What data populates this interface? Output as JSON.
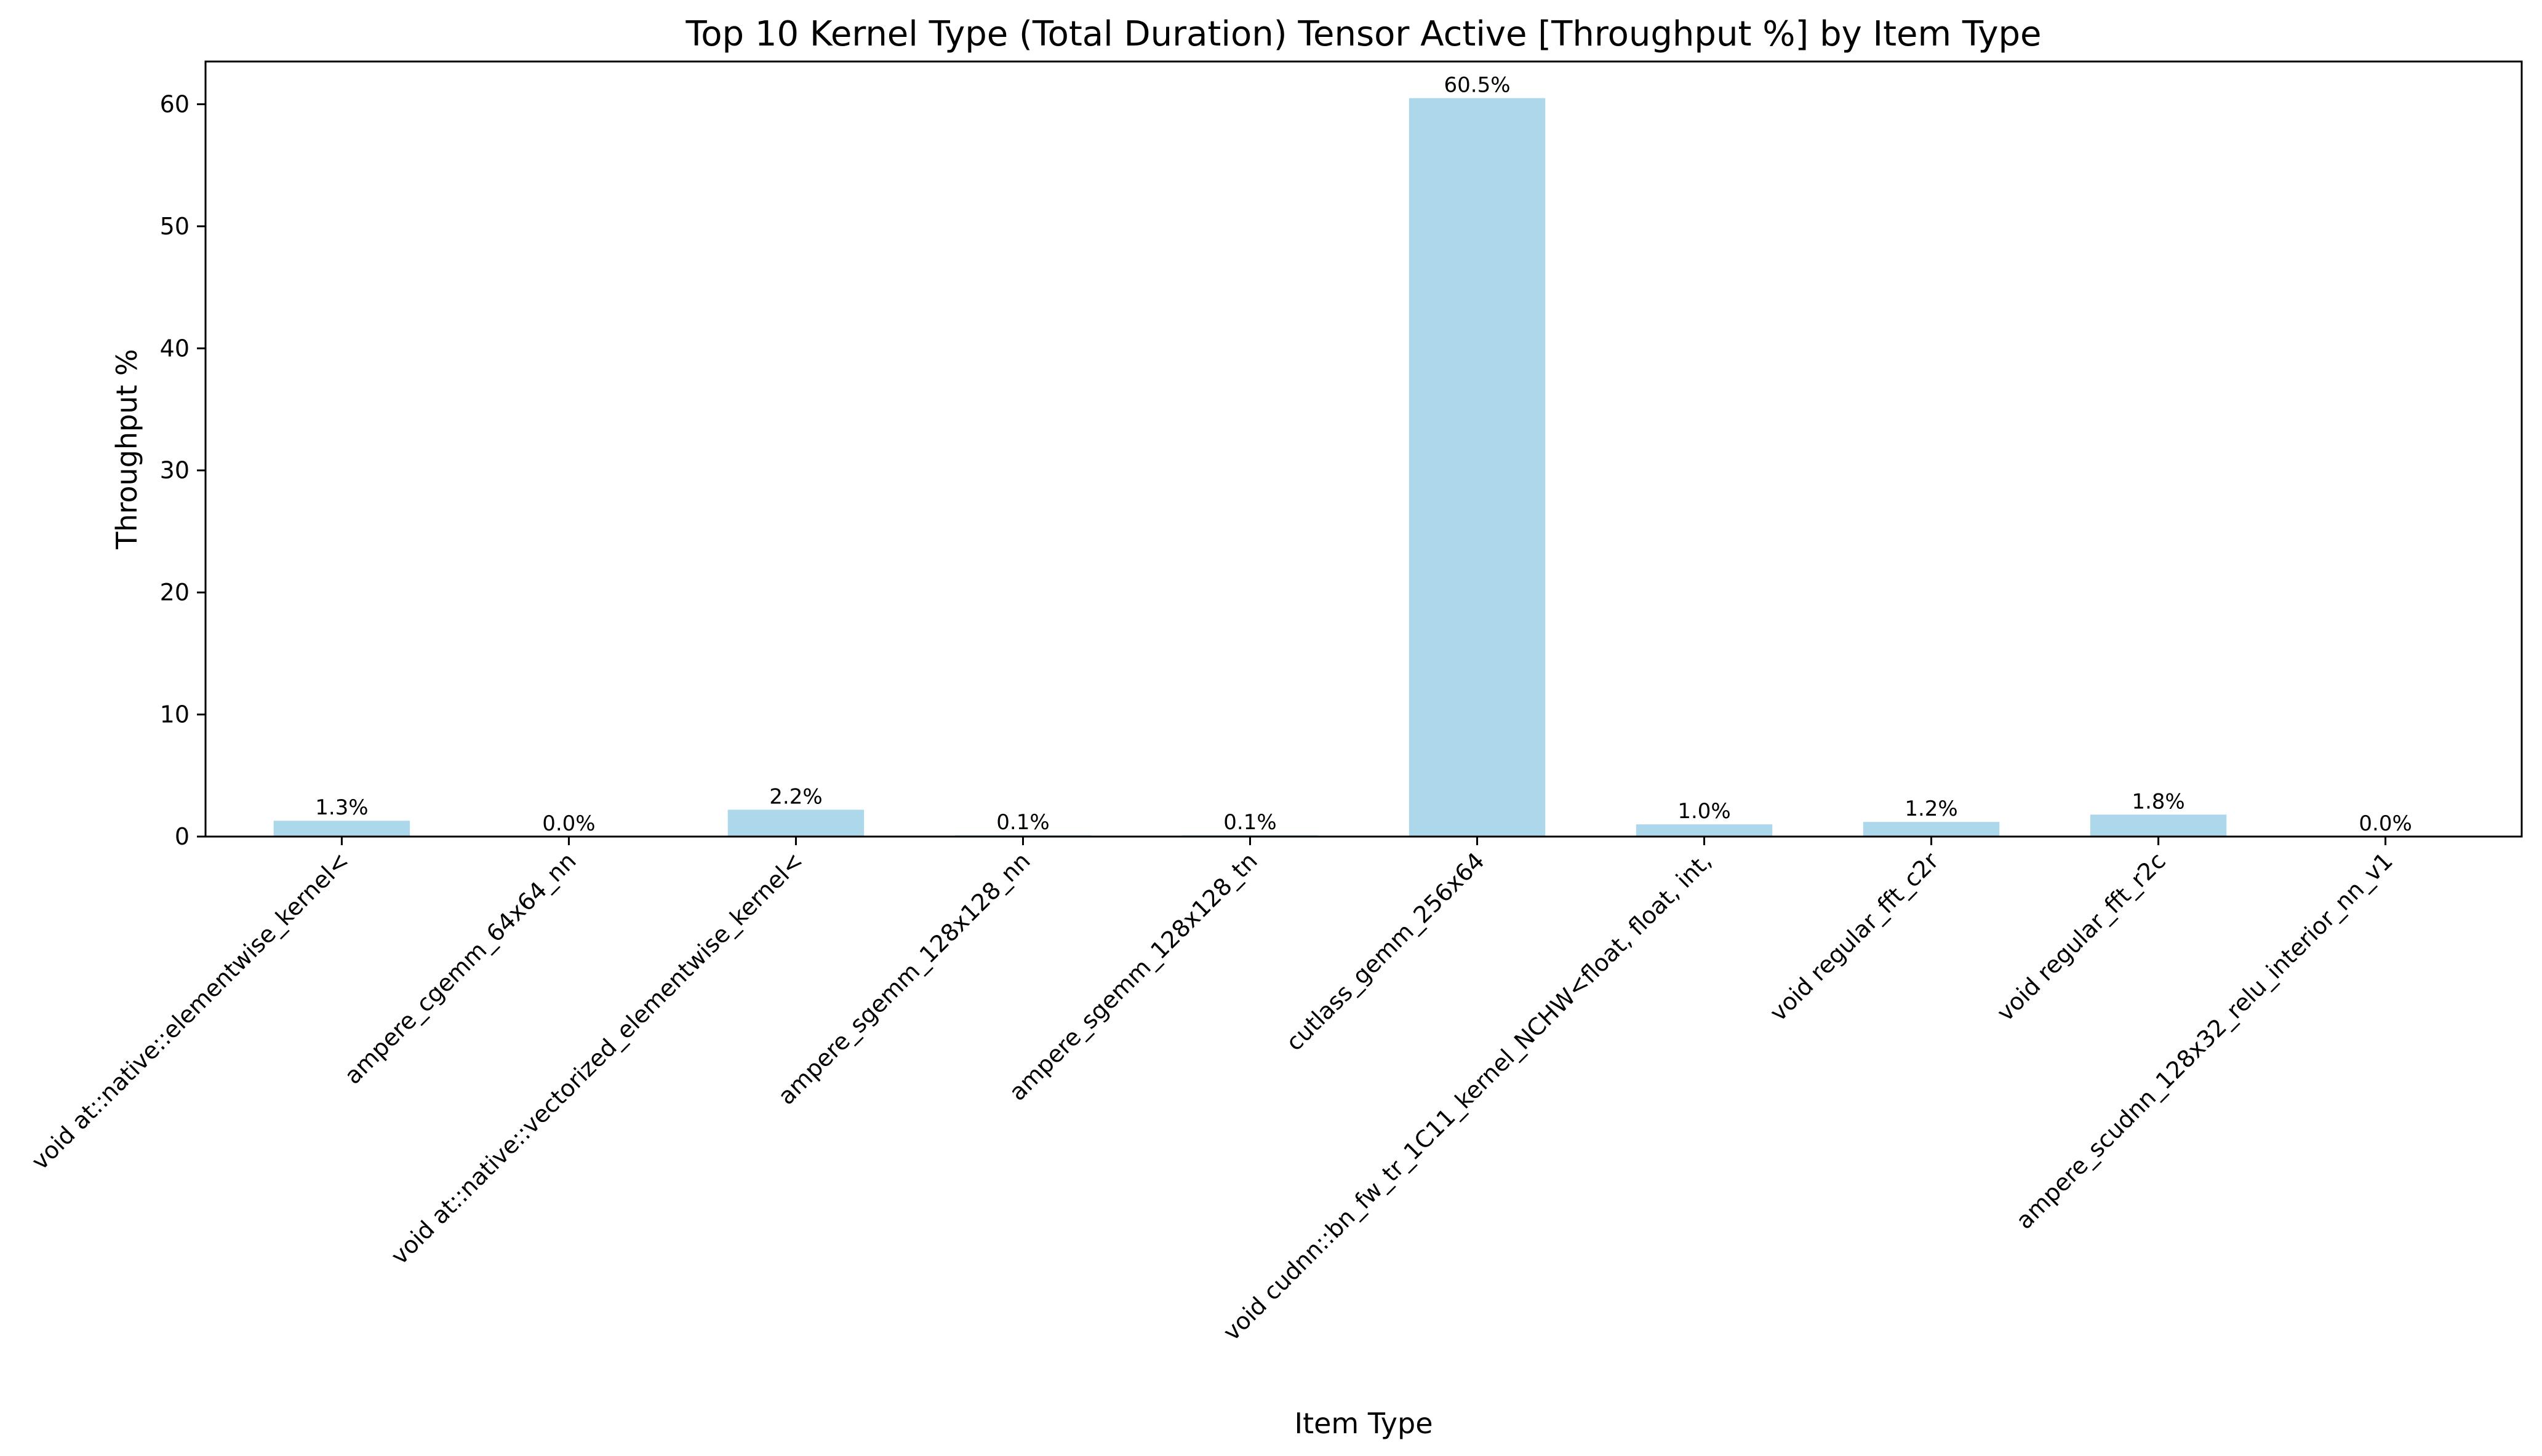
{
  "chart_data": {
    "type": "bar",
    "title": "Top 10 Kernel Type (Total Duration) Tensor Active [Throughput %] by Item Type",
    "xlabel": "Item Type",
    "ylabel": "Throughput %",
    "ylim": [
      0,
      63.5
    ],
    "yticks": [
      0,
      10,
      20,
      30,
      40,
      50,
      60
    ],
    "grid": false,
    "bar_color": "#add8eb",
    "categories": [
      "void at::native::elementwise_kernel<",
      "ampere_cgemm_64x64_nn",
      "void at::native::vectorized_elementwise_kernel<",
      "ampere_sgemm_128x128_nn",
      "ampere_sgemm_128x128_tn",
      "cutlass_gemm_256x64",
      "void cudnn::bn_fw_tr_1C11_kernel_NCHW<float, float, int,",
      "void regular_fft_c2r",
      "void regular_fft_r2c",
      "ampere_scudnn_128x32_relu_interior_nn_v1"
    ],
    "values": [
      1.3,
      0.0,
      2.2,
      0.1,
      0.1,
      60.5,
      1.0,
      1.2,
      1.8,
      0.0
    ],
    "data_labels": [
      "1.3%",
      "0.0%",
      "2.2%",
      "0.1%",
      "0.1%",
      "60.5%",
      "1.0%",
      "1.2%",
      "1.8%",
      "0.0%"
    ]
  }
}
